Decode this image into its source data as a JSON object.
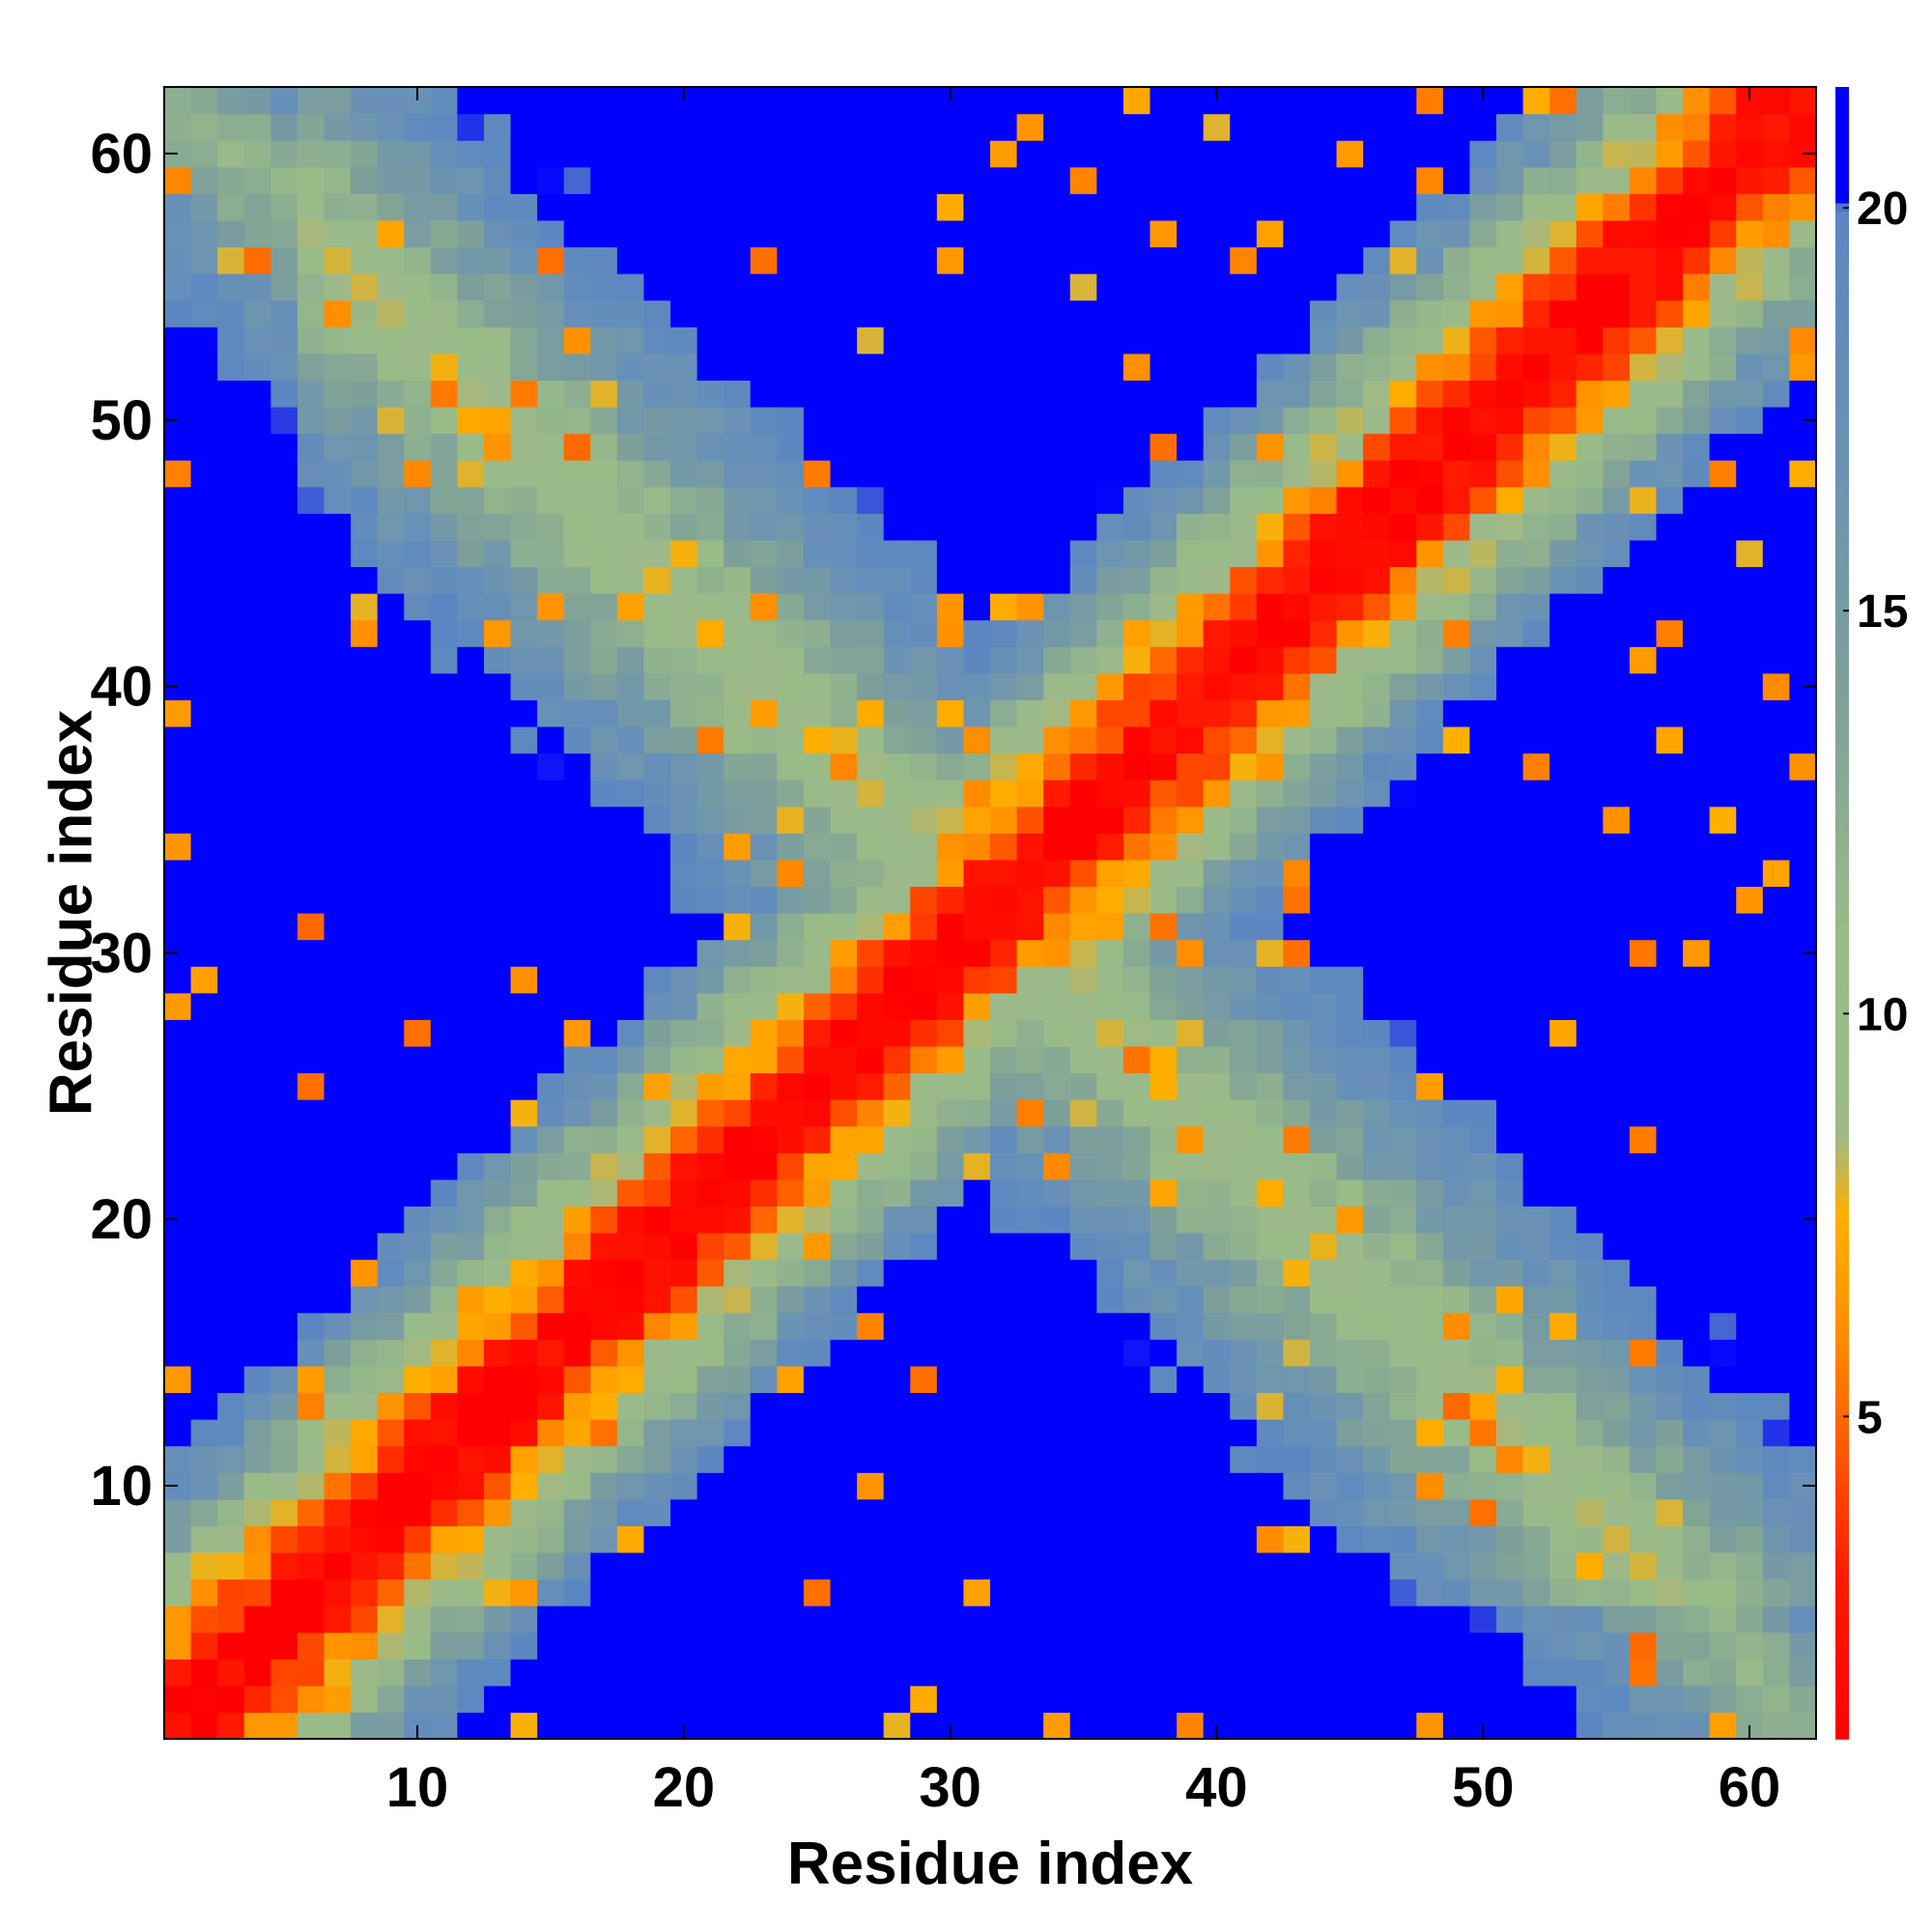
{
  "chart_data": {
    "type": "heatmap",
    "title": "",
    "xlabel": "Residue index",
    "ylabel": "Residue index",
    "n_residues": 62,
    "xlim": [
      0.5,
      62.5
    ],
    "ylim": [
      0.5,
      62.5
    ],
    "x_ticks": [
      10,
      20,
      30,
      40,
      50,
      60
    ],
    "y_ticks": [
      10,
      20,
      30,
      40,
      50,
      60
    ],
    "grid": false,
    "legend": "none",
    "value_description": "pairwise residue distance map, symmetric about the main diagonal",
    "value_model": {
      "near_diagonal": "value grows with sequence separation |i-j| (red < 3, orange 4-7, green ~8-10, grey-blue 11-19)",
      "anti_diagonal": "band of intermediate values along i + j = 63 where the two halves of the chain approach each other",
      "far": "values above 20 (blue) away from both bands"
    },
    "colorbar": {
      "position": "right",
      "range": [
        1,
        21.5
      ],
      "ticks": [
        5,
        10,
        15,
        20
      ],
      "stops": [
        {
          "value": 1.0,
          "color": "#ff0000"
        },
        {
          "value": 3.0,
          "color": "#ff1a00"
        },
        {
          "value": 4.5,
          "color": "#ff5500"
        },
        {
          "value": 6.0,
          "color": "#ff8c00"
        },
        {
          "value": 7.5,
          "color": "#ffb000"
        },
        {
          "value": 8.5,
          "color": "#9db98a"
        },
        {
          "value": 11.0,
          "color": "#99bb88"
        },
        {
          "value": 14.0,
          "color": "#7ea09a"
        },
        {
          "value": 17.0,
          "color": "#6a92b5"
        },
        {
          "value": 20.0,
          "color": "#5b86c2"
        },
        {
          "value": 20.1,
          "color": "#0000ff"
        },
        {
          "value": 21.5,
          "color": "#0000ff"
        }
      ]
    }
  }
}
